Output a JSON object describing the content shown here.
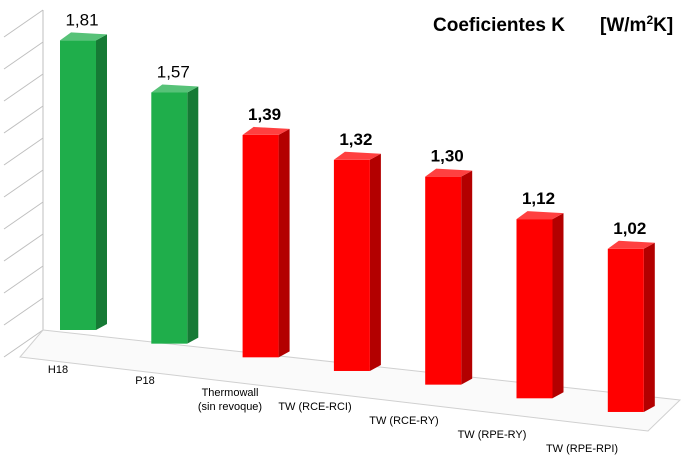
{
  "chart_data": {
    "type": "bar",
    "title": "Coeficientes K",
    "unit_prefix": "[W/m",
    "unit_sup": "2",
    "unit_suffix": "K]",
    "categories": [
      "H18",
      "P18",
      "Thermowall\n(sin revoque)",
      "TW (RCE-RCI)",
      "TW (RCE-RY)",
      "TW (RPE-RY)",
      "TW (RPE-RPI)"
    ],
    "values": [
      1.81,
      1.57,
      1.39,
      1.32,
      1.3,
      1.12,
      1.02
    ],
    "value_labels": [
      "1,81",
      "1,57",
      "1,39",
      "1,32",
      "1,30",
      "1,12",
      "1,02"
    ],
    "bar_colors": [
      "#1fae4b",
      "#1fae4b",
      "#ff0000",
      "#ff0000",
      "#ff0000",
      "#ff0000",
      "#ff0000"
    ],
    "bold_value_labels": [
      false,
      false,
      true,
      true,
      true,
      true,
      true
    ],
    "grid": true,
    "legend": "none"
  }
}
